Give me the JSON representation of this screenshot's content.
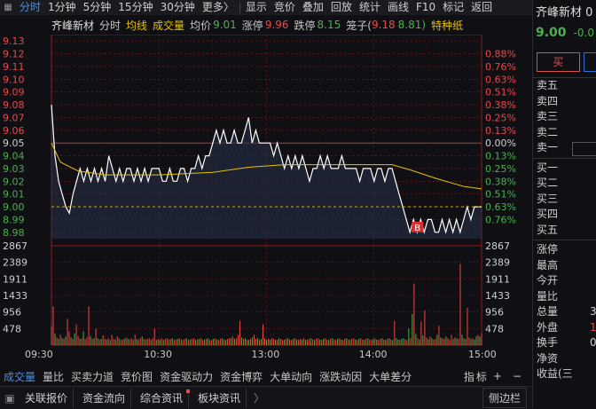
{
  "topbar": {
    "tabs": [
      "分时",
      "1分钟",
      "5分钟",
      "15分钟",
      "30分钟",
      "更多",
      "显示",
      "竞价",
      "叠加",
      "回放",
      "统计",
      "画线",
      "F10",
      "标记",
      "返回"
    ],
    "more_label": "更多〉"
  },
  "info": {
    "stock_name": "齐峰新材",
    "mode": "分时",
    "avg_line": "均线",
    "volume": "成交量",
    "avg_price_label": "均价",
    "avg_price": "9.01",
    "limit_up_label": "涨停",
    "limit_up": "9.96",
    "limit_down_label": "跌停",
    "limit_down": "8.15",
    "cage_label": "笼子(",
    "cage_low": "9.18",
    "cage_high": "8.81)",
    "special": "特种纸"
  },
  "chart_data": {
    "type": "line",
    "title": "",
    "price_ticks": [
      "9.13",
      "9.12",
      "9.11",
      "9.10",
      "9.09",
      "9.08",
      "9.07",
      "9.06",
      "9.05",
      "9.04",
      "9.03",
      "9.02",
      "9.01",
      "9.00",
      "8.99",
      "8.98"
    ],
    "pct_ticks": [
      "0.88%",
      "0.76%",
      "0.63%",
      "0.51%",
      "0.38%",
      "0.25%",
      "0.13%",
      "0.00%",
      "0.13%",
      "0.25%",
      "0.38%",
      "0.51%",
      "0.63%",
      "0.76%"
    ],
    "pct_tick_prices": [
      9.12,
      9.11,
      9.1,
      9.09,
      9.08,
      9.07,
      9.06,
      9.05,
      9.04,
      9.03,
      9.02,
      9.01,
      9.0,
      8.99
    ],
    "ylim": [
      8.975,
      9.135
    ],
    "prev_close": 9.05,
    "x_labels": [
      "09:30",
      "10:30",
      "13:00",
      "14:00",
      "15:00"
    ],
    "x_label_minutes": [
      0,
      60,
      120,
      180,
      240
    ],
    "volume_ticks": [
      "2867",
      "2389",
      "1911",
      "1433",
      "956",
      "478"
    ],
    "volume_tick_values": [
      2867,
      2389,
      1911,
      1433,
      956,
      478
    ],
    "volume_max": 2867,
    "marker": "B",
    "series": [
      {
        "key": "price",
        "points": [
          [
            0,
            9.08
          ],
          [
            2,
            9.04
          ],
          [
            4,
            9.02
          ],
          [
            6,
            9.01
          ],
          [
            8,
            9.0
          ],
          [
            10,
            8.995
          ],
          [
            12,
            9.01
          ],
          [
            14,
            9.02
          ],
          [
            16,
            9.03
          ],
          [
            18,
            9.02
          ],
          [
            20,
            9.03
          ],
          [
            22,
            9.02
          ],
          [
            24,
            9.03
          ],
          [
            26,
            9.02
          ],
          [
            28,
            9.03
          ],
          [
            30,
            9.02
          ],
          [
            32,
            9.04
          ],
          [
            34,
            9.03
          ],
          [
            36,
            9.02
          ],
          [
            38,
            9.03
          ],
          [
            40,
            9.02
          ],
          [
            42,
            9.03
          ],
          [
            44,
            9.03
          ],
          [
            46,
            9.02
          ],
          [
            48,
            9.03
          ],
          [
            50,
            9.02
          ],
          [
            52,
            9.03
          ],
          [
            54,
            9.02
          ],
          [
            56,
            9.03
          ],
          [
            58,
            9.03
          ],
          [
            60,
            9.03
          ],
          [
            62,
            9.02
          ],
          [
            64,
            9.02
          ],
          [
            66,
            9.03
          ],
          [
            68,
            9.02
          ],
          [
            70,
            9.02
          ],
          [
            72,
            9.03
          ],
          [
            74,
            9.03
          ],
          [
            76,
            9.02
          ],
          [
            78,
            9.03
          ],
          [
            80,
            9.03
          ],
          [
            82,
            9.04
          ],
          [
            84,
            9.03
          ],
          [
            86,
            9.04
          ],
          [
            88,
            9.04
          ],
          [
            90,
            9.05
          ],
          [
            92,
            9.06
          ],
          [
            94,
            9.05
          ],
          [
            96,
            9.06
          ],
          [
            98,
            9.05
          ],
          [
            100,
            9.05
          ],
          [
            102,
            9.06
          ],
          [
            104,
            9.05
          ],
          [
            106,
            9.05
          ],
          [
            108,
            9.06
          ],
          [
            110,
            9.07
          ],
          [
            112,
            9.05
          ],
          [
            114,
            9.06
          ],
          [
            116,
            9.05
          ],
          [
            118,
            9.05
          ],
          [
            120,
            9.05
          ],
          [
            122,
            9.05
          ],
          [
            124,
            9.04
          ],
          [
            126,
            9.05
          ],
          [
            128,
            9.04
          ],
          [
            130,
            9.03
          ],
          [
            132,
            9.04
          ],
          [
            134,
            9.03
          ],
          [
            136,
            9.04
          ],
          [
            138,
            9.03
          ],
          [
            140,
            9.04
          ],
          [
            142,
            9.03
          ],
          [
            144,
            9.02
          ],
          [
            146,
            9.03
          ],
          [
            148,
            9.03
          ],
          [
            150,
            9.04
          ],
          [
            152,
            9.03
          ],
          [
            154,
            9.04
          ],
          [
            156,
            9.03
          ],
          [
            158,
            9.03
          ],
          [
            160,
            9.03
          ],
          [
            162,
            9.04
          ],
          [
            164,
            9.03
          ],
          [
            166,
            9.03
          ],
          [
            168,
            9.03
          ],
          [
            170,
            9.03
          ],
          [
            172,
            9.02
          ],
          [
            174,
            9.03
          ],
          [
            176,
            9.03
          ],
          [
            178,
            9.03
          ],
          [
            180,
            9.02
          ],
          [
            182,
            9.03
          ],
          [
            184,
            9.03
          ],
          [
            186,
            9.02
          ],
          [
            188,
            9.03
          ],
          [
            190,
            9.03
          ],
          [
            192,
            9.02
          ],
          [
            194,
            9.01
          ],
          [
            196,
            9.0
          ],
          [
            198,
            8.99
          ],
          [
            200,
            8.98
          ],
          [
            202,
            8.99
          ],
          [
            204,
            8.98
          ],
          [
            206,
            8.99
          ],
          [
            208,
            8.98
          ],
          [
            210,
            8.99
          ],
          [
            212,
            8.99
          ],
          [
            214,
            8.98
          ],
          [
            216,
            8.98
          ],
          [
            218,
            8.99
          ],
          [
            220,
            8.98
          ],
          [
            222,
            8.99
          ],
          [
            224,
            8.98
          ],
          [
            226,
            8.99
          ],
          [
            228,
            8.98
          ],
          [
            230,
            8.99
          ],
          [
            232,
            9.0
          ],
          [
            234,
            8.99
          ],
          [
            236,
            9.0
          ],
          [
            238,
            9.0
          ],
          [
            240,
            9.0
          ]
        ]
      },
      {
        "key": "avg",
        "points": [
          [
            0,
            9.05
          ],
          [
            5,
            9.035
          ],
          [
            15,
            9.028
          ],
          [
            30,
            9.025
          ],
          [
            60,
            9.025
          ],
          [
            90,
            9.027
          ],
          [
            110,
            9.031
          ],
          [
            130,
            9.033
          ],
          [
            160,
            9.033
          ],
          [
            190,
            9.033
          ],
          [
            200,
            9.029
          ],
          [
            215,
            9.022
          ],
          [
            230,
            9.016
          ],
          [
            240,
            9.014
          ]
        ]
      }
    ],
    "volumes": [
      560,
      1120,
      340,
      220,
      180,
      300,
      210,
      180,
      250,
      760,
      400,
      230,
      180,
      340,
      600,
      260,
      180,
      200,
      400,
      180,
      230,
      1120,
      260,
      180,
      200,
      480,
      200,
      160,
      180,
      280,
      180,
      160,
      200,
      150,
      300,
      180,
      160,
      250,
      200,
      150,
      160,
      180,
      220,
      180,
      160,
      200,
      150,
      300,
      180,
      160,
      200,
      250,
      180,
      160,
      180,
      200,
      150,
      200,
      480,
      150,
      180,
      160,
      200,
      150,
      180,
      200,
      160,
      180,
      200,
      150,
      160,
      180,
      200,
      150,
      160,
      180,
      200,
      150,
      160,
      180,
      200,
      150,
      160,
      180,
      200,
      150,
      160,
      180,
      200,
      150,
      150,
      180,
      200,
      160,
      150,
      180,
      200,
      160,
      150,
      180,
      200,
      200,
      250,
      180,
      200,
      300,
      700,
      220,
      180,
      200,
      160,
      150,
      180,
      220,
      300,
      180,
      200,
      150,
      180,
      600,
      200,
      150,
      180,
      160,
      200,
      180,
      150,
      160,
      200,
      180,
      150,
      160,
      180,
      200,
      160,
      150,
      180,
      200,
      160,
      150,
      180,
      160,
      200,
      150,
      160,
      180,
      200,
      160,
      150,
      180,
      200,
      160,
      150,
      180,
      200,
      160,
      150,
      180,
      200,
      160,
      150,
      180,
      200,
      160,
      150,
      180,
      200,
      160,
      150,
      180,
      200,
      160,
      150,
      180,
      200,
      160,
      150,
      180,
      200,
      160,
      150,
      180,
      200,
      160,
      150,
      180,
      200,
      160,
      150,
      180,
      200,
      160,
      150,
      700,
      200,
      160,
      150,
      180,
      200,
      160,
      150,
      480,
      200,
      900,
      1780,
      320,
      200,
      160,
      680,
      280,
      1000,
      220,
      180,
      250,
      200,
      160,
      180,
      300,
      560,
      220,
      200,
      180,
      250,
      200,
      160,
      300,
      180,
      220,
      200,
      180,
      2350,
      300,
      200,
      180,
      1080,
      220,
      180,
      200,
      160,
      250,
      300,
      250,
      350
    ],
    "volume_up": [
      1,
      1,
      0,
      1,
      0,
      1,
      0,
      1,
      0,
      1,
      1,
      0,
      1,
      0,
      1,
      1,
      0,
      1,
      0,
      1,
      1,
      1,
      0,
      1,
      0,
      1,
      0,
      1,
      0,
      1,
      1,
      0,
      1,
      0,
      1,
      1,
      0,
      1,
      0,
      1,
      1,
      0,
      1,
      0,
      1,
      1,
      0,
      1,
      0,
      1,
      1,
      0,
      1,
      0,
      1,
      1,
      0,
      1,
      1,
      0,
      1,
      0,
      1,
      0,
      1,
      1,
      0,
      1,
      0,
      1,
      1,
      0,
      1,
      0,
      1,
      1,
      0,
      1,
      0,
      1,
      1,
      0,
      1,
      0,
      1,
      1,
      0,
      1,
      0,
      1,
      1,
      0,
      1,
      0,
      1,
      1,
      0,
      1,
      0,
      1,
      1,
      0,
      1,
      0,
      1,
      1,
      1,
      0,
      1,
      0,
      1,
      0,
      1,
      0,
      1,
      1,
      0,
      1,
      0,
      1,
      1,
      0,
      1,
      0,
      1,
      1,
      0,
      1,
      0,
      1,
      1,
      0,
      1,
      0,
      1,
      1,
      0,
      1,
      0,
      1,
      1,
      0,
      1,
      0,
      1,
      1,
      0,
      1,
      0,
      1,
      1,
      0,
      1,
      0,
      1,
      1,
      0,
      1,
      0,
      1,
      1,
      0,
      1,
      0,
      1,
      1,
      0,
      1,
      0,
      1,
      1,
      0,
      1,
      0,
      1,
      1,
      0,
      1,
      0,
      1,
      1,
      0,
      1,
      0,
      1,
      1,
      0,
      1,
      0,
      1,
      0,
      1,
      0,
      1,
      0,
      0,
      1,
      0,
      0,
      1,
      1,
      0,
      1,
      0,
      1,
      0,
      1,
      0,
      1,
      0,
      1,
      1,
      0,
      1,
      0,
      1,
      1,
      0,
      1,
      0,
      1,
      1,
      0,
      1,
      1,
      1,
      0,
      1,
      0,
      1,
      1,
      0,
      1,
      0,
      1,
      1,
      0,
      1,
      0,
      0,
      1,
      0,
      1,
      0,
      1
    ]
  },
  "tabs_bar": {
    "items": [
      "成交量",
      "量比",
      "买卖力道",
      "竞价图",
      "资金驱动力",
      "资金博弈",
      "大单动向",
      "涨跌动因",
      "大单差分"
    ],
    "right": [
      "指",
      "标",
      "+",
      "−"
    ]
  },
  "bottom_bar": {
    "items": [
      "关联报价",
      "资金流向",
      "综合资讯",
      "板块资讯"
    ],
    "chevron": "〉",
    "right": "侧边栏"
  },
  "right_panel": {
    "name": "齐峰新材 0",
    "price": "9.00",
    "change": "-0.0",
    "buy_label": "买",
    "sell_rows": [
      "卖五",
      "卖四",
      "卖三",
      "卖二",
      "卖一"
    ],
    "buy_rows": [
      "买一",
      "买二",
      "买三",
      "买四",
      "买五"
    ],
    "stats": [
      {
        "label": "涨停",
        "value": ""
      },
      {
        "label": "最高",
        "value": ""
      },
      {
        "label": "今开",
        "value": ""
      },
      {
        "label": "量比",
        "value": ""
      },
      {
        "label": "总量",
        "value": "3"
      },
      {
        "label": "外盘",
        "value": "1"
      },
      {
        "label": "换手",
        "value": "0"
      },
      {
        "label": "净资",
        "value": ""
      },
      {
        "label": "收益(三",
        "value": ""
      }
    ]
  },
  "colors": {
    "up": "#e64a4a",
    "down": "#4caf50",
    "avg": "#e8c200",
    "line": "#ffffff",
    "grid": "#8b1c1c"
  }
}
